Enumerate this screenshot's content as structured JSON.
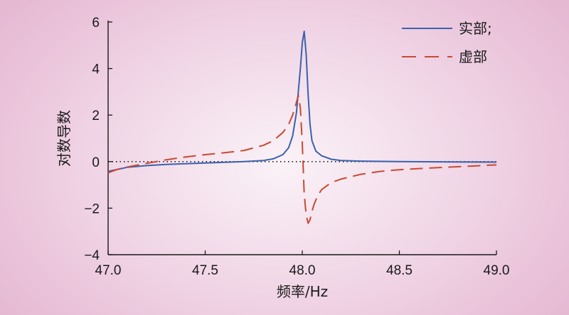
{
  "chart_data": {
    "type": "line",
    "xlabel": "频率/Hz",
    "ylabel": "对数导数",
    "xlim": [
      47.0,
      49.0
    ],
    "ylim": [
      -4,
      6
    ],
    "x_ticks": [
      "47.0",
      "47.5",
      "48.0",
      "48.5",
      "49.0"
    ],
    "y_ticks": [
      "−4",
      "−2",
      "0",
      "2",
      "4",
      "6"
    ],
    "grid": false,
    "zero_line": "dotted",
    "legend_position": "top-right",
    "series": [
      {
        "name": "实部;",
        "style": "solid",
        "color": "#3a62ad",
        "x": [
          47.0,
          47.1,
          47.2,
          47.3,
          47.4,
          47.5,
          47.6,
          47.7,
          47.8,
          47.85,
          47.9,
          47.93,
          47.95,
          47.97,
          47.99,
          48.0,
          48.01,
          48.02,
          48.03,
          48.04,
          48.05,
          48.07,
          48.1,
          48.15,
          48.2,
          48.3,
          48.5,
          48.7,
          49.0
        ],
        "y": [
          -0.42,
          -0.24,
          -0.17,
          -0.12,
          -0.09,
          -0.06,
          -0.03,
          0.0,
          0.05,
          0.12,
          0.3,
          0.6,
          1.1,
          2.1,
          4.0,
          5.1,
          5.6,
          4.6,
          2.9,
          1.6,
          0.9,
          0.45,
          0.25,
          0.1,
          0.05,
          0.02,
          0.0,
          -0.01,
          -0.02
        ]
      },
      {
        "name": "虚部",
        "style": "dashed",
        "color": "#c84a32",
        "x": [
          47.0,
          47.05,
          47.1,
          47.2,
          47.3,
          47.4,
          47.5,
          47.6,
          47.7,
          47.8,
          47.85,
          47.9,
          47.93,
          47.95,
          47.96,
          47.97,
          47.98,
          47.99,
          48.0,
          48.01,
          48.02,
          48.03,
          48.04,
          48.05,
          48.06,
          48.08,
          48.1,
          48.15,
          48.2,
          48.3,
          48.4,
          48.5,
          48.6,
          48.7,
          48.8,
          48.9,
          49.0
        ],
        "y": [
          -0.48,
          -0.33,
          -0.23,
          -0.07,
          0.08,
          0.2,
          0.3,
          0.38,
          0.48,
          0.7,
          0.9,
          1.25,
          1.6,
          2.0,
          2.25,
          2.55,
          2.85,
          2.3,
          0.8,
          -1.4,
          -2.3,
          -2.65,
          -2.5,
          -2.15,
          -1.85,
          -1.45,
          -1.2,
          -0.9,
          -0.75,
          -0.55,
          -0.42,
          -0.35,
          -0.3,
          -0.26,
          -0.22,
          -0.18,
          -0.14
        ]
      }
    ]
  }
}
